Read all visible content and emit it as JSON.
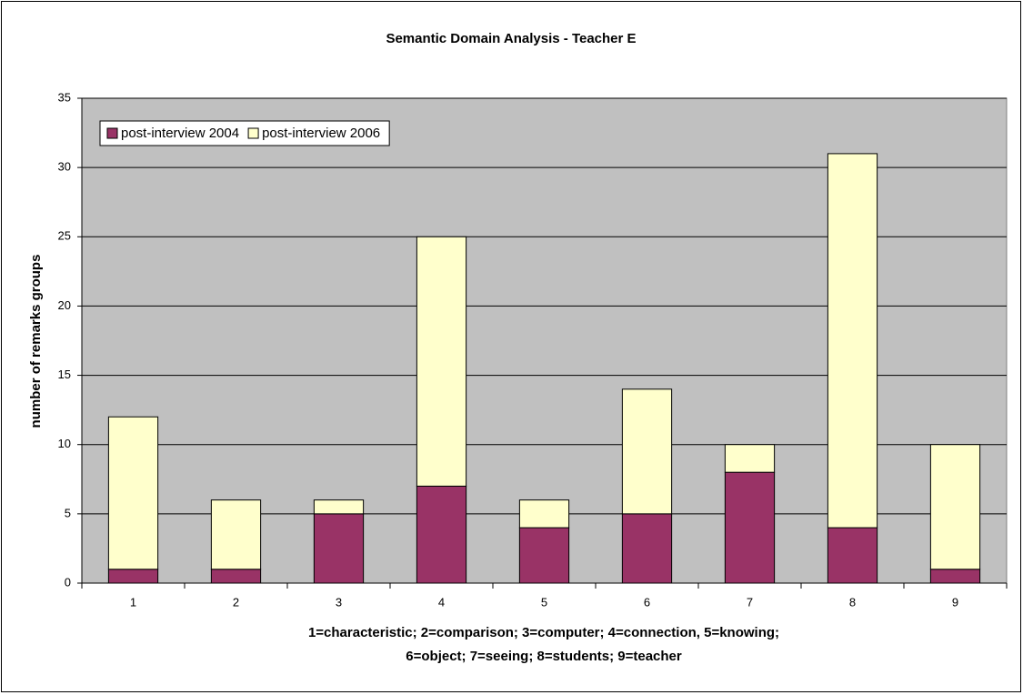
{
  "chart_data": {
    "type": "stacked_bar",
    "title": "Semantic Domain Analysis - Teacher E",
    "ylabel": "number of remarks groups",
    "xlabel": [
      "1=characteristic; 2=comparison; 3=computer; 4=connection, 5=knowing;",
      "6=object; 7=seeing; 8=students; 9=teacher"
    ],
    "categories": [
      "1",
      "2",
      "3",
      "4",
      "5",
      "6",
      "7",
      "8",
      "9"
    ],
    "series": [
      {
        "name": "post-interview 2004",
        "color": "#993366",
        "values": [
          1,
          1,
          5,
          7,
          4,
          5,
          8,
          4,
          1
        ]
      },
      {
        "name": "post-interview 2006",
        "color": "#FFFFCC",
        "values": [
          11,
          5,
          1,
          18,
          2,
          9,
          2,
          27,
          9
        ]
      }
    ],
    "ylim": [
      0,
      35
    ],
    "yticks": [
      0,
      5,
      10,
      15,
      20,
      25,
      30,
      35
    ],
    "grid": true,
    "legend": "upper-left",
    "plot_background": "#C0C0C0"
  }
}
